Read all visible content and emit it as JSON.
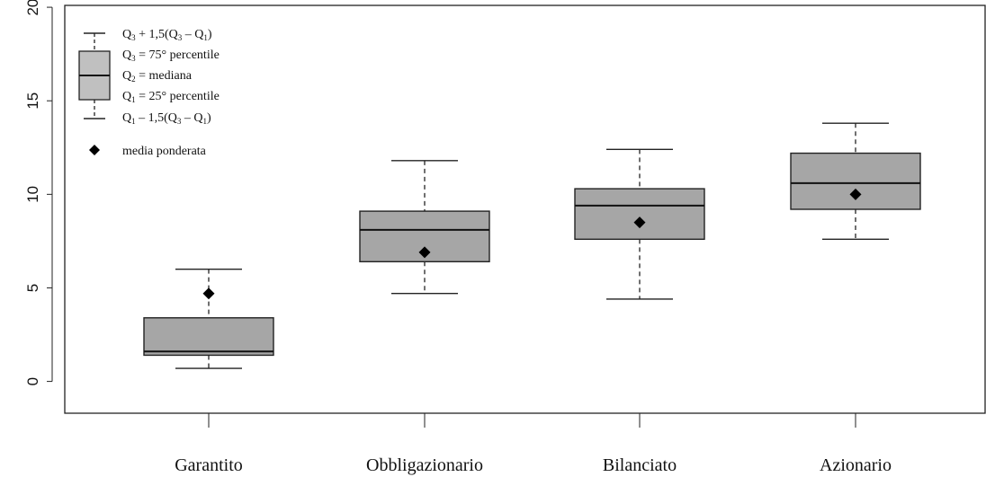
{
  "chart_data": {
    "type": "boxplot",
    "categories": [
      "Garantito",
      "Obbligazionario",
      "Bilanciato",
      "Azionario"
    ],
    "series": [
      {
        "category": "Garantito",
        "whisker_low": 0.7,
        "q1": 1.4,
        "median": 1.6,
        "q3": 3.4,
        "whisker_high": 6.0,
        "weighted_mean": 4.7
      },
      {
        "category": "Obbligazionario",
        "whisker_low": 4.7,
        "q1": 6.4,
        "median": 8.1,
        "q3": 9.1,
        "whisker_high": 11.8,
        "weighted_mean": 6.9
      },
      {
        "category": "Bilanciato",
        "whisker_low": 4.4,
        "q1": 7.6,
        "median": 9.4,
        "q3": 10.3,
        "whisker_high": 12.4,
        "weighted_mean": 8.5
      },
      {
        "category": "Azionario",
        "whisker_low": 7.6,
        "q1": 9.2,
        "median": 10.6,
        "q3": 12.2,
        "whisker_high": 13.8,
        "weighted_mean": 10.0
      }
    ],
    "yticks": [
      0,
      5,
      10,
      15,
      20
    ],
    "ylim": [
      -1.7,
      20.1
    ],
    "grid": false,
    "legend_position": "top-left",
    "box_fill": "#a6a6a6",
    "mean_marker": "diamond",
    "legend": {
      "items": [
        {
          "base": "Q",
          "sub": "3",
          "rest": [
            " + 1,5(Q",
            "3",
            " – Q",
            "1",
            ")"
          ]
        },
        {
          "base": "Q",
          "sub": "3",
          "rest": [
            " = 75° percentile"
          ]
        },
        {
          "base": "Q",
          "sub": "2",
          "rest": [
            " = mediana"
          ]
        },
        {
          "base": "Q",
          "sub": "1",
          "rest": [
            " = 25° percentile"
          ]
        },
        {
          "base": "Q",
          "sub": "1",
          "rest": [
            " – 1,5(Q",
            "3",
            " – Q",
            "1",
            ")"
          ]
        }
      ],
      "mean_label": "media ponderata",
      "legend_box_fill": "#c0c0c0"
    }
  }
}
